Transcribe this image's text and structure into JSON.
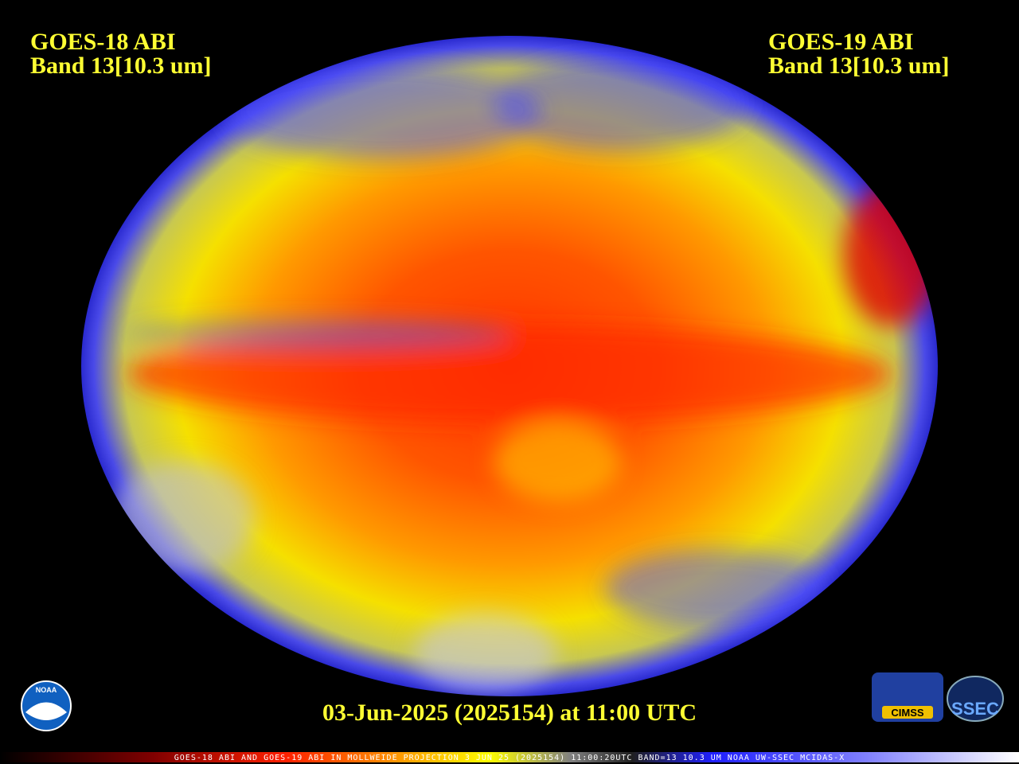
{
  "header": {
    "left": {
      "title": "GOES-18 ABI",
      "band": "Band 13[10.3 um]"
    },
    "right": {
      "title": "GOES-19 ABI",
      "band": "Band 13[10.3 um]"
    }
  },
  "timestamp": "03-Jun-2025 (2025154) at 11:00 UTC",
  "caption": "GOES-18 ABI AND GOES-19 ABI IN MOLLWEIDE PROJECTION 3 JUN 25 (2025154) 11:00:20UTC BAND=13 10.3 UM NOAA UW-SSEC MCIDAS-X",
  "logos": {
    "noaa": "NOAA",
    "cimss": "CIMSS",
    "ssec": "SSEC"
  }
}
